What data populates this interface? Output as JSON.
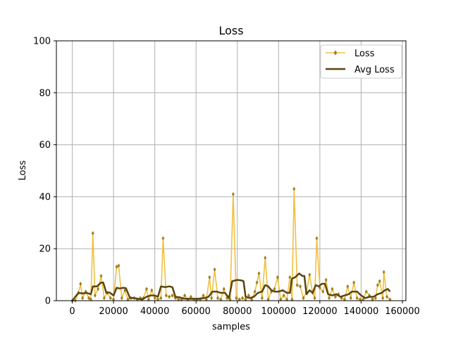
{
  "chart_data": {
    "type": "line",
    "title": "Loss",
    "xlabel": "samples",
    "ylabel": "Loss",
    "xlim": [
      -7700,
      161700
    ],
    "ylim": [
      0,
      100
    ],
    "x_ticks": [
      0,
      20000,
      40000,
      60000,
      80000,
      100000,
      120000,
      140000,
      160000
    ],
    "y_ticks": [
      0,
      20,
      40,
      60,
      80,
      100
    ],
    "grid": true,
    "legend_position": "top-right",
    "series": [
      {
        "name": "Loss",
        "color": "#f0c040",
        "marker_color": "#a08020",
        "style": "line-with-markers",
        "points": [
          [
            0,
            0
          ],
          [
            1500,
            0
          ],
          [
            3000,
            3
          ],
          [
            4000,
            6.5
          ],
          [
            5000,
            1
          ],
          [
            6500,
            3.5
          ],
          [
            8000,
            1
          ],
          [
            9000,
            0.5
          ],
          [
            10000,
            26
          ],
          [
            11000,
            2
          ],
          [
            12500,
            4.5
          ],
          [
            14000,
            9.5
          ],
          [
            15500,
            1
          ],
          [
            17000,
            3
          ],
          [
            18500,
            1
          ],
          [
            20000,
            0.5
          ],
          [
            21500,
            13
          ],
          [
            22500,
            13.5
          ],
          [
            24000,
            1
          ],
          [
            25500,
            4
          ],
          [
            27000,
            0.5
          ],
          [
            28500,
            1
          ],
          [
            30000,
            1
          ],
          [
            31500,
            0.5
          ],
          [
            33000,
            1
          ],
          [
            34500,
            1
          ],
          [
            36000,
            4.5
          ],
          [
            37000,
            0.5
          ],
          [
            38500,
            4
          ],
          [
            40000,
            1
          ],
          [
            41500,
            0.5
          ],
          [
            43000,
            1
          ],
          [
            44000,
            24
          ],
          [
            45500,
            2
          ],
          [
            47000,
            1.5
          ],
          [
            48500,
            2
          ],
          [
            50000,
            1
          ],
          [
            51500,
            0.5
          ],
          [
            53000,
            0.5
          ],
          [
            54500,
            2
          ],
          [
            56000,
            0.5
          ],
          [
            57500,
            1.5
          ],
          [
            59000,
            0.5
          ],
          [
            60500,
            0.5
          ],
          [
            62000,
            0.5
          ],
          [
            63500,
            2
          ],
          [
            65000,
            0.5
          ],
          [
            66500,
            9
          ],
          [
            67500,
            1
          ],
          [
            69000,
            12
          ],
          [
            70500,
            1
          ],
          [
            72000,
            0.5
          ],
          [
            73500,
            4.5
          ],
          [
            75000,
            1
          ],
          [
            76500,
            0.5
          ],
          [
            78000,
            41
          ],
          [
            79500,
            1
          ],
          [
            81000,
            0.5
          ],
          [
            82500,
            1
          ],
          [
            84000,
            0.5
          ],
          [
            85500,
            2
          ],
          [
            87000,
            0.5
          ],
          [
            88500,
            3.5
          ],
          [
            89500,
            7
          ],
          [
            90500,
            10.5
          ],
          [
            92000,
            1
          ],
          [
            93500,
            16.5
          ],
          [
            95000,
            0.5
          ],
          [
            96500,
            3.5
          ],
          [
            98000,
            4.5
          ],
          [
            99500,
            9
          ],
          [
            101000,
            0.5
          ],
          [
            102500,
            2
          ],
          [
            104000,
            0.5
          ],
          [
            105500,
            9
          ],
          [
            106500,
            0.5
          ],
          [
            107500,
            43
          ],
          [
            109000,
            6
          ],
          [
            110500,
            5.5
          ],
          [
            112000,
            1
          ],
          [
            113500,
            3
          ],
          [
            115000,
            10
          ],
          [
            116500,
            3
          ],
          [
            117500,
            1
          ],
          [
            118500,
            24
          ],
          [
            120000,
            5
          ],
          [
            121500,
            3.5
          ],
          [
            123000,
            8
          ],
          [
            124500,
            1
          ],
          [
            126000,
            4.5
          ],
          [
            127500,
            1.5
          ],
          [
            129000,
            2.5
          ],
          [
            130500,
            1
          ],
          [
            132000,
            0.5
          ],
          [
            133500,
            5.5
          ],
          [
            135000,
            1
          ],
          [
            136500,
            7
          ],
          [
            138000,
            1
          ],
          [
            139500,
            0.5
          ],
          [
            141000,
            0.5
          ],
          [
            142500,
            3.5
          ],
          [
            144000,
            2
          ],
          [
            145500,
            0.5
          ],
          [
            147000,
            1
          ],
          [
            148000,
            6
          ],
          [
            149000,
            7.5
          ],
          [
            150500,
            1
          ],
          [
            151000,
            11
          ],
          [
            152500,
            1.5
          ],
          [
            154000,
            0.5
          ]
        ]
      },
      {
        "name": "Avg Loss",
        "color": "#5a4510",
        "style": "thick-line",
        "points": [
          [
            0,
            0
          ],
          [
            1500,
            1.5
          ],
          [
            3000,
            3
          ],
          [
            5000,
            2.8
          ],
          [
            7000,
            3
          ],
          [
            9000,
            2.5
          ],
          [
            10000,
            5.5
          ],
          [
            12000,
            5.5
          ],
          [
            14000,
            7
          ],
          [
            15000,
            7
          ],
          [
            16500,
            3
          ],
          [
            18000,
            3.2
          ],
          [
            20000,
            2
          ],
          [
            21500,
            5
          ],
          [
            23000,
            4.7
          ],
          [
            25000,
            5
          ],
          [
            26000,
            4.8
          ],
          [
            28000,
            1
          ],
          [
            30000,
            1
          ],
          [
            32000,
            0.7
          ],
          [
            34000,
            0.5
          ],
          [
            36000,
            1.5
          ],
          [
            38000,
            2
          ],
          [
            40000,
            2
          ],
          [
            41500,
            1.5
          ],
          [
            43000,
            5.5
          ],
          [
            45000,
            5.2
          ],
          [
            47000,
            5.5
          ],
          [
            48500,
            5.2
          ],
          [
            50000,
            1.5
          ],
          [
            52000,
            1.3
          ],
          [
            54000,
            0.8
          ],
          [
            56000,
            0.7
          ],
          [
            58000,
            0.7
          ],
          [
            60000,
            0.7
          ],
          [
            62000,
            0.8
          ],
          [
            64000,
            1
          ],
          [
            66000,
            1.5
          ],
          [
            68000,
            3.5
          ],
          [
            70000,
            3.5
          ],
          [
            72000,
            3
          ],
          [
            74000,
            3
          ],
          [
            76000,
            1
          ],
          [
            77500,
            7.5
          ],
          [
            80000,
            8
          ],
          [
            82000,
            7.8
          ],
          [
            83000,
            7.5
          ],
          [
            84000,
            1.5
          ],
          [
            86000,
            1
          ],
          [
            88000,
            1.5
          ],
          [
            90000,
            3
          ],
          [
            92000,
            3.5
          ],
          [
            93500,
            6
          ],
          [
            95000,
            5.5
          ],
          [
            96500,
            4
          ],
          [
            98000,
            3.5
          ],
          [
            100000,
            3.5
          ],
          [
            102000,
            4
          ],
          [
            104000,
            3
          ],
          [
            105500,
            3
          ],
          [
            106500,
            8.5
          ],
          [
            108000,
            9
          ],
          [
            110000,
            10.5
          ],
          [
            111500,
            9.5
          ],
          [
            112500,
            9.5
          ],
          [
            113500,
            2.5
          ],
          [
            115000,
            4
          ],
          [
            116500,
            3
          ],
          [
            118000,
            6
          ],
          [
            119500,
            5.5
          ],
          [
            121000,
            6.5
          ],
          [
            122500,
            6.5
          ],
          [
            124000,
            2.5
          ],
          [
            126000,
            2
          ],
          [
            128000,
            2.5
          ],
          [
            130000,
            1.5
          ],
          [
            132000,
            2
          ],
          [
            134000,
            2.5
          ],
          [
            135500,
            3.5
          ],
          [
            138000,
            3.5
          ],
          [
            140000,
            2
          ],
          [
            142000,
            1
          ],
          [
            144000,
            1.5
          ],
          [
            146000,
            1.5
          ],
          [
            148000,
            2.5
          ],
          [
            150000,
            3
          ],
          [
            151500,
            4
          ],
          [
            153000,
            4.5
          ],
          [
            154000,
            3.5
          ]
        ]
      }
    ]
  }
}
